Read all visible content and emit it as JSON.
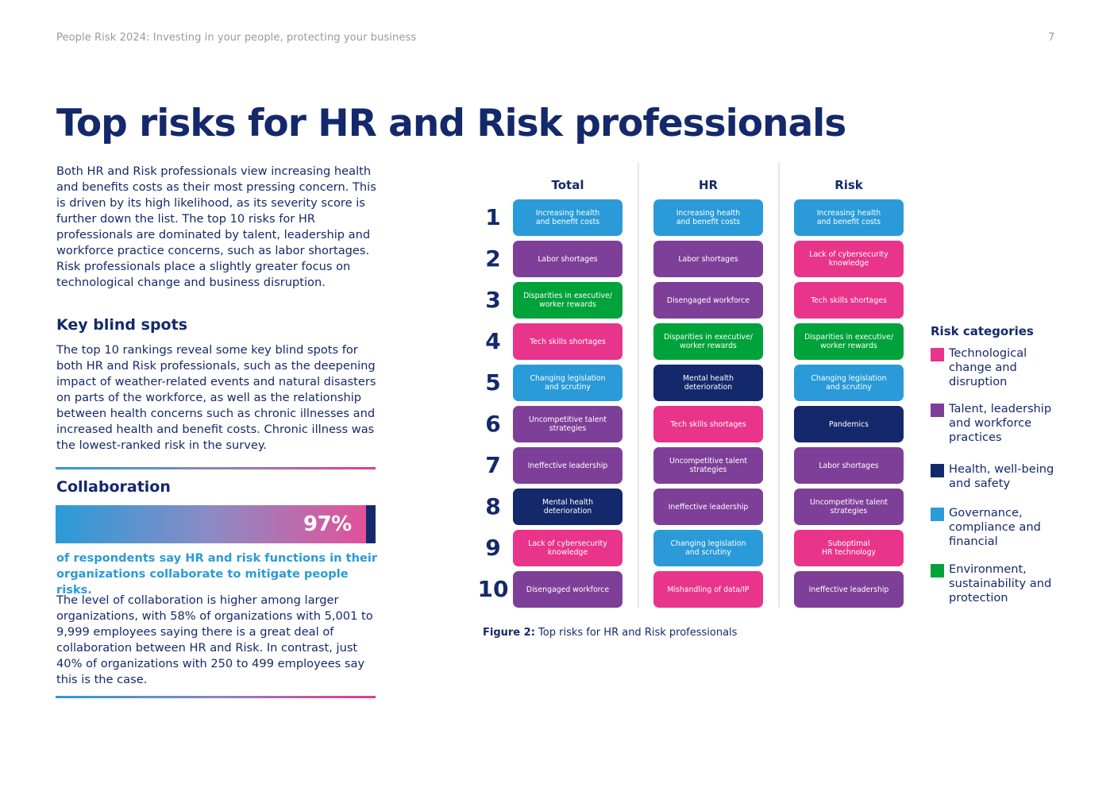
{
  "header": {
    "doc_title": "People Risk 2024: Investing in your people, protecting your business",
    "page_number": "7"
  },
  "title": "Top risks for HR and Risk professionals",
  "intro": "Both HR and Risk professionals view increasing health and benefits costs as their most pressing concern. This is driven by its high likelihood, as its severity score is further down the list. The top 10 risks for HR professionals are dominated by talent, leadership and workforce practice concerns, such as labor shortages. Risk professionals place a slightly greater focus on technological change and business disruption.",
  "blind_spots": {
    "heading": "Key blind spots",
    "text": "The top 10 rankings reveal some key blind spots for both HR and Risk professionals, such as the deepening impact of weather-related events and natural disasters on parts of the workforce, as well as the relationship between health concerns such as chronic illnesses and increased health and benefit costs. Chronic illness was the lowest-ranked risk in the survey."
  },
  "collaboration": {
    "heading": "Collaboration",
    "stat": "97%",
    "stat_caption": "of respondents say HR and risk functions in their organizations collaborate to mitigate people risks.",
    "text": "The level of collaboration is higher among larger organizations, with 58% of organizations with 5,001 to 9,999 employees saying there is a great deal of collaboration between HR and Risk. In contrast, just 40% of organizations with 250 to 499 employees say this is the case."
  },
  "chart": {
    "columns": [
      "Total",
      "HR",
      "Risk"
    ],
    "ranks": [
      "1",
      "2",
      "3",
      "4",
      "5",
      "6",
      "7",
      "8",
      "9",
      "10"
    ],
    "category_colors": {
      "tech": "#e8348a",
      "talent": "#7e3f98",
      "health": "#14296b",
      "governance": "#2a9bd8",
      "environment": "#00a23a"
    },
    "total": [
      {
        "label": "Increasing health\nand benefit costs",
        "cat": "governance"
      },
      {
        "label": "Labor shortages",
        "cat": "talent"
      },
      {
        "label": "Disparities in executive/\nworker rewards",
        "cat": "environment"
      },
      {
        "label": "Tech skills shortages",
        "cat": "tech"
      },
      {
        "label": "Changing legislation\nand scrutiny",
        "cat": "governance"
      },
      {
        "label": "Uncompetitive talent\nstrategies",
        "cat": "talent"
      },
      {
        "label": "Ineffective leadership",
        "cat": "talent"
      },
      {
        "label": "Mental health\ndeterioration",
        "cat": "health"
      },
      {
        "label": "Lack of cybersecurity\nknowledge",
        "cat": "tech"
      },
      {
        "label": "Disengaged workforce",
        "cat": "talent"
      }
    ],
    "hr": [
      {
        "label": "Increasing health\nand benefit costs",
        "cat": "governance"
      },
      {
        "label": "Labor shortages",
        "cat": "talent"
      },
      {
        "label": "Disengaged workforce",
        "cat": "talent"
      },
      {
        "label": "Disparities in executive/\nworker rewards",
        "cat": "environment"
      },
      {
        "label": "Mental health\ndeterioration",
        "cat": "health"
      },
      {
        "label": "Tech skills shortages",
        "cat": "tech"
      },
      {
        "label": "Uncompetitive talent\nstrategies",
        "cat": "talent"
      },
      {
        "label": "Ineffective leadership",
        "cat": "talent"
      },
      {
        "label": "Changing legislation\nand scrutiny",
        "cat": "governance"
      },
      {
        "label": "Mishandling of data/IP",
        "cat": "tech"
      }
    ],
    "risk": [
      {
        "label": "Increasing health\nand benefit costs",
        "cat": "governance"
      },
      {
        "label": "Lack of cybersecurity\nknowledge",
        "cat": "tech"
      },
      {
        "label": "Tech skills shortages",
        "cat": "tech"
      },
      {
        "label": "Disparities in executive/\nworker rewards",
        "cat": "environment"
      },
      {
        "label": "Changing legislation\nand scrutiny",
        "cat": "governance"
      },
      {
        "label": "Pandemics",
        "cat": "health"
      },
      {
        "label": "Labor shortages",
        "cat": "talent"
      },
      {
        "label": "Uncompetitive talent\nstrategies",
        "cat": "talent"
      },
      {
        "label": "Suboptimal\nHR technology",
        "cat": "tech"
      },
      {
        "label": "Ineffective leadership",
        "cat": "talent"
      }
    ]
  },
  "legend": {
    "title": "Risk categories",
    "items": [
      {
        "label": "Technological\nchange and\ndisruption",
        "color": "#e8348a"
      },
      {
        "label": "Talent, leadership\nand workforce\npractices",
        "color": "#7e3f98"
      },
      {
        "label": "Health, well-being\nand safety",
        "color": "#14296b"
      },
      {
        "label": "Governance,\ncompliance and\nfinancial",
        "color": "#2a9bd8"
      },
      {
        "label": "Environment,\nsustainability and\nprotection",
        "color": "#00a23a"
      }
    ]
  },
  "figure": {
    "label": "Figure 2:",
    "caption": "Top risks for HR and Risk professionals"
  }
}
